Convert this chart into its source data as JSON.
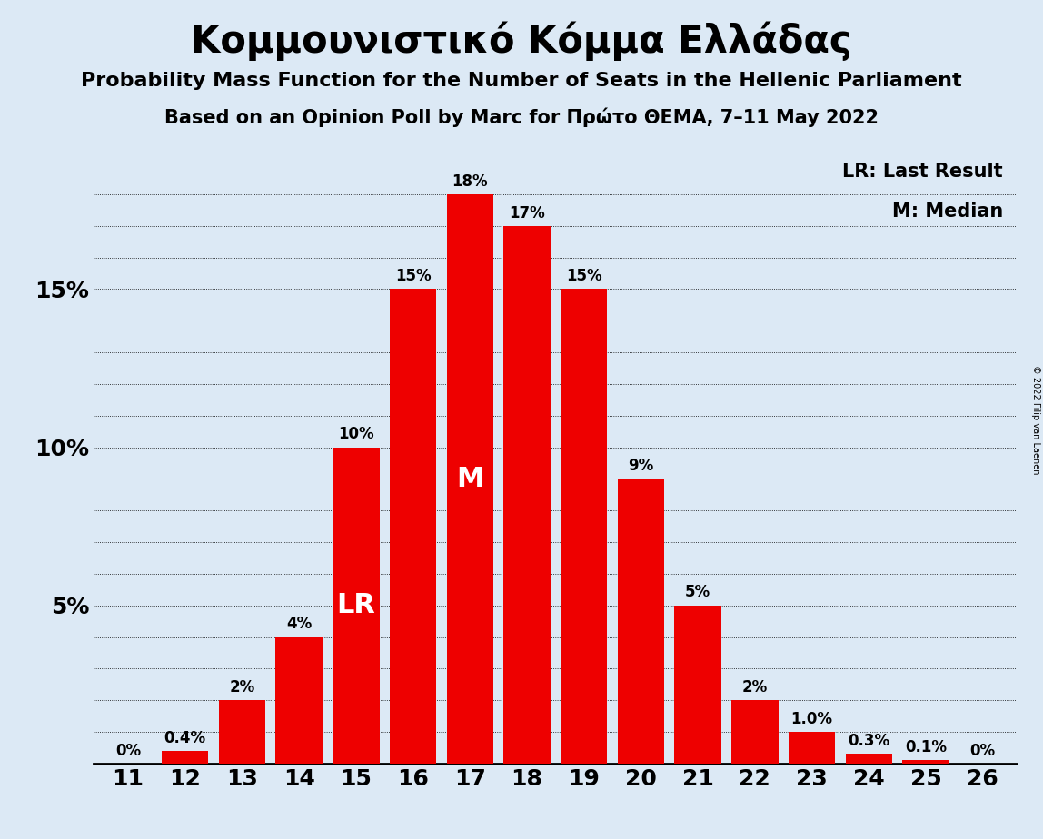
{
  "title": "Κομμουνιστικό Κόμμα Ελλάδας",
  "subtitle1": "Probability Mass Function for the Number of Seats in the Hellenic Parliament",
  "subtitle2": "Based on an Opinion Poll by Marc for Πρώτο ΘΕΜΑ, 7–11 May 2022",
  "copyright": "© 2022 Filip van Laenen",
  "seats": [
    11,
    12,
    13,
    14,
    15,
    16,
    17,
    18,
    19,
    20,
    21,
    22,
    23,
    24,
    25,
    26
  ],
  "probs": [
    0.0,
    0.4,
    2.0,
    4.0,
    10.0,
    15.0,
    18.0,
    17.0,
    15.0,
    9.0,
    5.0,
    2.0,
    1.0,
    0.3,
    0.1,
    0.0
  ],
  "bar_color": "#ee0000",
  "bg_color": "#dce9f5",
  "lr_seat": 15,
  "median_seat": 17,
  "ylim": [
    0,
    19.5
  ],
  "yticks": [
    5,
    10,
    15
  ],
  "ytick_labels": [
    "5%",
    "10%",
    "15%"
  ],
  "legend_lr": "LR: Last Result",
  "legend_m": "M: Median",
  "bar_label_overrides": {
    "11": "0%",
    "12": "0.4%",
    "13": "2%",
    "14": "4%",
    "15": "10%",
    "16": "15%",
    "17": "18%",
    "18": "17%",
    "19": "15%",
    "20": "9%",
    "21": "5%",
    "22": "2%",
    "23": "1.0%",
    "24": "0.3%",
    "25": "0.1%",
    "26": "0%"
  },
  "title_fontsize": 30,
  "subtitle_fontsize": 16,
  "tick_fontsize": 18,
  "bar_label_fontsize": 12,
  "legend_fontsize": 15,
  "lr_m_fontsize": 22
}
